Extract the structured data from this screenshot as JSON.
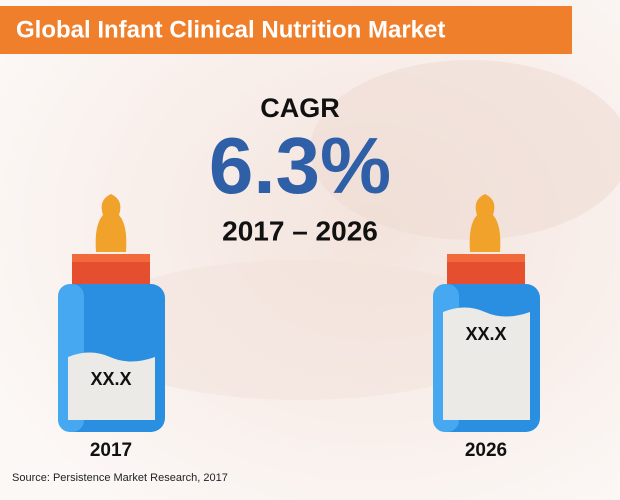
{
  "header": {
    "title": "Global Infant Clinical Nutrition Market"
  },
  "cagr": {
    "label": "CAGR",
    "value": "6.3%",
    "period": "2017 – 2026"
  },
  "bottles": [
    {
      "year": "2017",
      "value": "XX.X"
    },
    {
      "year": "2026",
      "value": "XX.X"
    }
  ],
  "source": "Source: Persistence Market Research, 2017"
}
